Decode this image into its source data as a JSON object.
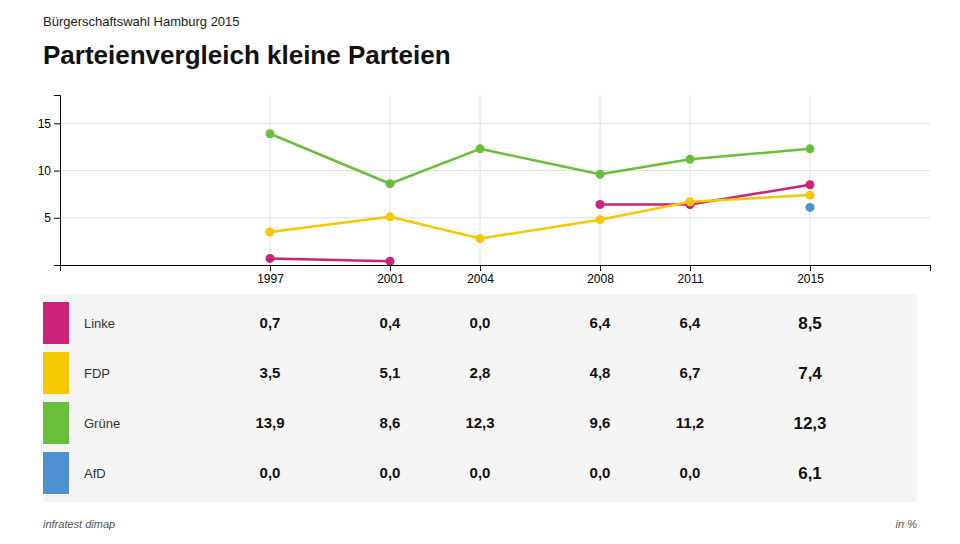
{
  "chart_data": {
    "type": "line",
    "subtitle": "Bürgerschaftswahl Hamburg 2015",
    "title": "Parteienvergleich kleine Parteien",
    "annotations": [
      "infratest dimap",
      "in %"
    ],
    "x": [
      1997,
      2001,
      2004,
      2008,
      2011,
      2015
    ],
    "xlim": [
      1990,
      2019
    ],
    "xticks": [
      1997,
      2001,
      2004,
      2008,
      2011,
      2015
    ],
    "ylim": [
      0,
      18
    ],
    "yticks": [
      5,
      10,
      15
    ],
    "grid": true,
    "marker": "circle",
    "data_labels": true,
    "series": [
      {
        "name": "Linke",
        "color": "#cc2277",
        "values": [
          0.7,
          0.4,
          0.0,
          6.4,
          6.4,
          8.5
        ],
        "value_labels": [
          "0,7",
          "0,4",
          "0,0",
          "6,4",
          "6,4",
          "8,5"
        ]
      },
      {
        "name": "FDP",
        "color": "#f5c800",
        "values": [
          3.5,
          5.1,
          2.8,
          4.8,
          6.7,
          7.4
        ],
        "value_labels": [
          "3,5",
          "5,1",
          "2,8",
          "4,8",
          "6,7",
          "7,4"
        ]
      },
      {
        "name": "Grüne",
        "color": "#6abf3a",
        "values": [
          13.9,
          8.6,
          12.3,
          9.6,
          11.2,
          12.3
        ],
        "value_labels": [
          "13,9",
          "8,6",
          "12,3",
          "9,6",
          "11,2",
          "12,3"
        ]
      },
      {
        "name": "AfD",
        "color": "#4f90d0",
        "values": [
          0.0,
          0.0,
          0.0,
          0.0,
          0.0,
          6.1
        ],
        "value_labels": [
          "0,0",
          "0,0",
          "0,0",
          "0,0",
          "0,0",
          "6,1"
        ]
      }
    ]
  }
}
